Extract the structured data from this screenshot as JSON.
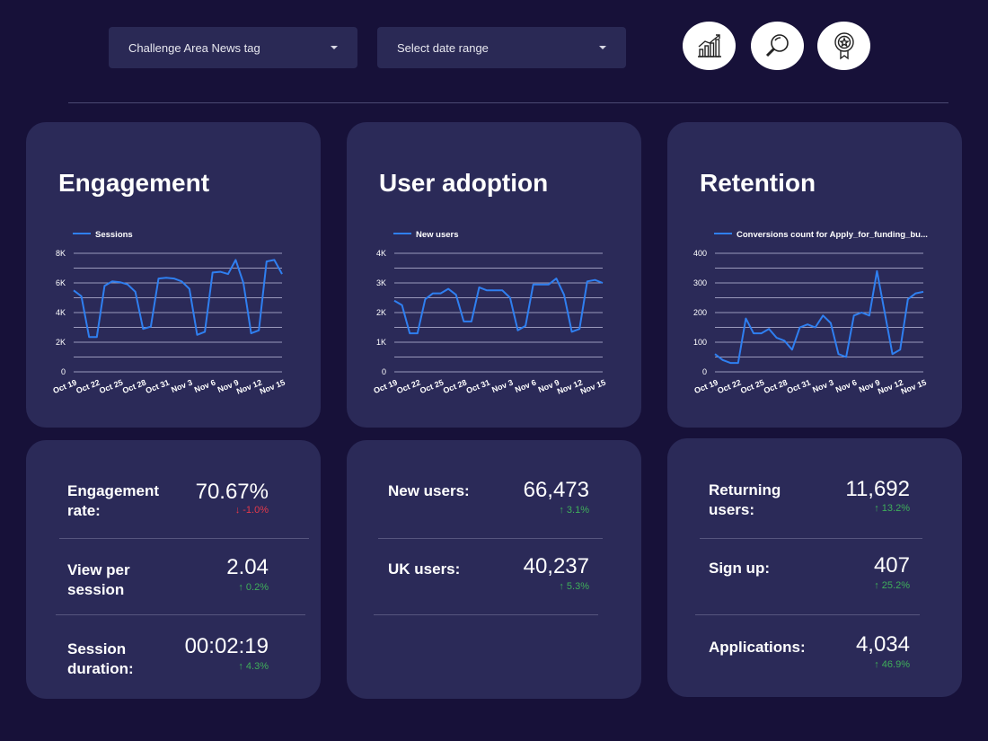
{
  "filters": {
    "tag_dropdown": "Challenge Area News tag",
    "date_dropdown": "Select date range"
  },
  "icons": {
    "analytics": "chart-growth-icon",
    "search": "magnifier-icon",
    "badge": "award-badge-icon"
  },
  "colors": {
    "background": "#171139",
    "card": "#2b2a58",
    "line": "#2f7ff0",
    "positive": "#3fae5a",
    "negative": "#e4394a"
  },
  "cards": {
    "engagement": {
      "title": "Engagement"
    },
    "adoption": {
      "title": "User adoption"
    },
    "retention": {
      "title": "Retention"
    }
  },
  "chart_data": [
    {
      "type": "line",
      "title": "",
      "series": [
        {
          "name": "Sessions",
          "values": [
            5500,
            5100,
            2350,
            2350,
            5800,
            6100,
            6050,
            5900,
            5400,
            2900,
            3050,
            6300,
            6350,
            6300,
            6100,
            5600,
            2500,
            2700,
            6700,
            6750,
            6600,
            7550,
            6000,
            2600,
            2800,
            7450,
            7550,
            6600
          ]
        }
      ],
      "x_ticks": [
        "Oct 19",
        "Oct 22",
        "Oct 25",
        "Oct 28",
        "Oct 31",
        "Nov 3",
        "Nov 6",
        "Nov 9",
        "Nov 12",
        "Nov 15"
      ],
      "y_ticks": [
        "0",
        "2K",
        "4K",
        "6K",
        "8K"
      ],
      "ylim": [
        0,
        8000
      ],
      "grid": true,
      "legend": "top-left"
    },
    {
      "type": "line",
      "title": "",
      "series": [
        {
          "name": "New users",
          "values": [
            2400,
            2250,
            1300,
            1300,
            2450,
            2650,
            2650,
            2800,
            2600,
            1700,
            1700,
            2850,
            2750,
            2750,
            2750,
            2500,
            1400,
            1550,
            2950,
            2950,
            2950,
            3150,
            2600,
            1350,
            1450,
            3050,
            3100,
            3000
          ]
        }
      ],
      "x_ticks": [
        "Oct 19",
        "Oct 22",
        "Oct 25",
        "Oct 28",
        "Oct 31",
        "Nov 3",
        "Nov 6",
        "Nov 9",
        "Nov 12",
        "Nov 15"
      ],
      "y_ticks": [
        "0",
        "1K",
        "2K",
        "3K",
        "4K"
      ],
      "ylim": [
        0,
        4000
      ],
      "grid": true,
      "legend": "top-left"
    },
    {
      "type": "line",
      "title": "",
      "series": [
        {
          "name": "Conversions count for Apply_for_funding_bu...",
          "values": [
            60,
            40,
            30,
            30,
            180,
            130,
            130,
            145,
            115,
            105,
            75,
            150,
            160,
            150,
            190,
            165,
            60,
            50,
            190,
            200,
            190,
            340,
            200,
            60,
            75,
            245,
            265,
            270
          ]
        }
      ],
      "x_ticks": [
        "Oct 19",
        "Oct 22",
        "Oct 25",
        "Oct 28",
        "Oct 31",
        "Nov 3",
        "Nov 6",
        "Nov 9",
        "Nov 12",
        "Nov 15"
      ],
      "y_ticks": [
        "0",
        "100",
        "200",
        "300",
        "400"
      ],
      "ylim": [
        0,
        400
      ],
      "grid": true,
      "legend": "top-left"
    }
  ],
  "kpis": {
    "engagement": [
      {
        "label": "Engagement rate:",
        "value": "70.67%",
        "delta": "-1.0%",
        "direction": "down"
      },
      {
        "label": "View per session",
        "value": "2.04",
        "delta": "0.2%",
        "direction": "up"
      },
      {
        "label": "Session duration:",
        "value": "00:02:19",
        "delta": "4.3%",
        "direction": "up"
      }
    ],
    "adoption": [
      {
        "label": "New users:",
        "value": "66,473",
        "delta": "3.1%",
        "direction": "up"
      },
      {
        "label": "UK users:",
        "value": "40,237",
        "delta": "5.3%",
        "direction": "up"
      }
    ],
    "retention": [
      {
        "label": "Returning users:",
        "value": "11,692",
        "delta": "13.2%",
        "direction": "up"
      },
      {
        "label": "Sign up:",
        "value": "407",
        "delta": "25.2%",
        "direction": "up"
      },
      {
        "label": "Applications:",
        "value": "4,034",
        "delta": "46.9%",
        "direction": "up"
      }
    ]
  }
}
